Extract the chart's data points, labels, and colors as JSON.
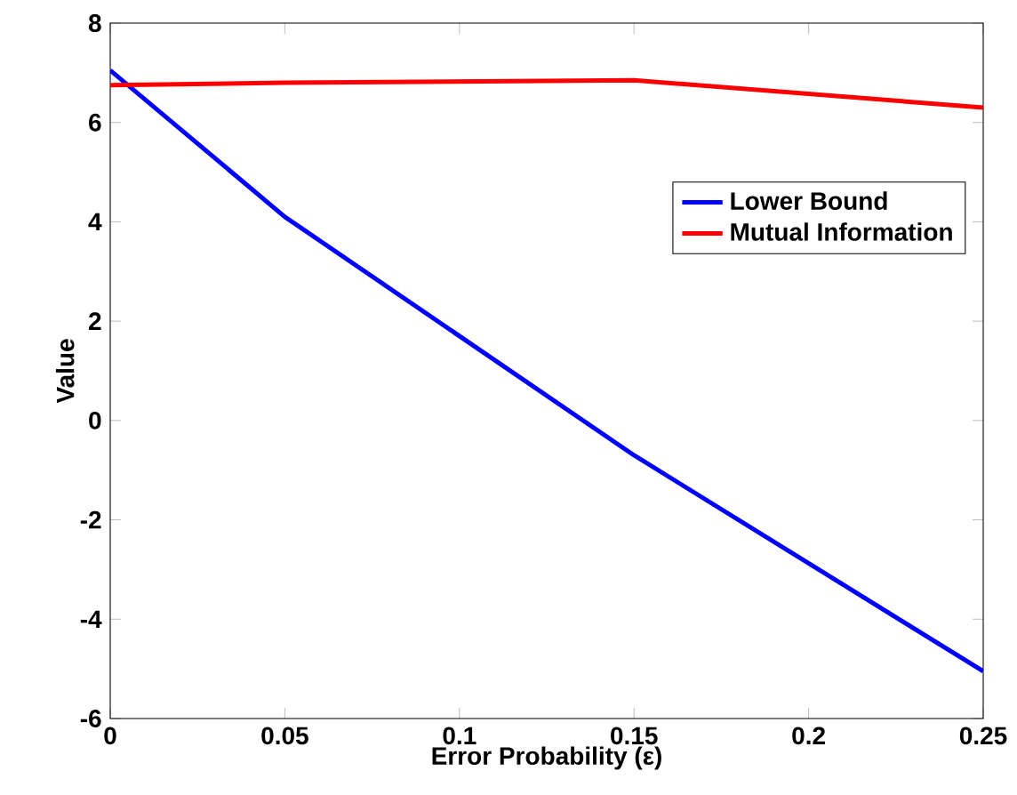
{
  "chart_data": {
    "type": "line",
    "xlabel": "Error Probability (ε)",
    "ylabel": "Value",
    "x": [
      0,
      0.05,
      0.15,
      0.25
    ],
    "series": [
      {
        "name": "Lower Bound",
        "color": "#0000ff",
        "values": [
          7.05,
          4.1,
          -0.7,
          -5.05
        ]
      },
      {
        "name": "Mutual Information",
        "color": "#ff0000",
        "values": [
          6.75,
          6.8,
          6.85,
          6.3
        ]
      }
    ],
    "xlim": [
      0,
      0.25
    ],
    "ylim": [
      -6,
      8
    ],
    "xticks": [
      0,
      0.05,
      0.1,
      0.15,
      0.2,
      0.25
    ],
    "yticks": [
      -6,
      -4,
      -2,
      0,
      2,
      4,
      6,
      8
    ],
    "legend": "right",
    "grid": false,
    "marker": "none",
    "line_style": "solid"
  }
}
